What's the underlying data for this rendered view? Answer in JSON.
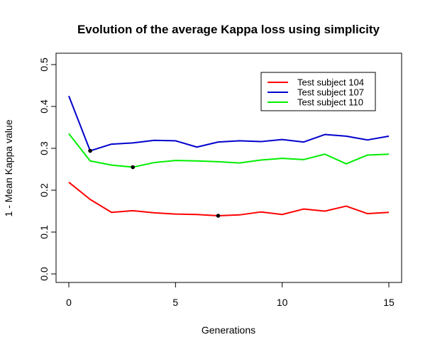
{
  "chart_data": {
    "type": "line",
    "title": "Evolution of the average Kappa loss using simplicity",
    "xlabel": "Generations",
    "ylabel": "1 - Mean Kappa value",
    "xlim": [
      0,
      15
    ],
    "ylim": [
      0,
      0.5
    ],
    "xticks": [
      "0",
      "5",
      "10",
      "15"
    ],
    "yticks": [
      "0.0",
      "0.1",
      "0.2",
      "0.3",
      "0.4",
      "0.5"
    ],
    "x": [
      0,
      1,
      2,
      3,
      4,
      5,
      6,
      7,
      8,
      9,
      10,
      11,
      12,
      13,
      14,
      15
    ],
    "series": [
      {
        "name": "Test subject 104",
        "color": "#ff0000",
        "values": [
          0.219,
          0.178,
          0.147,
          0.151,
          0.146,
          0.143,
          0.142,
          0.139,
          0.141,
          0.148,
          0.142,
          0.155,
          0.15,
          0.162,
          0.144,
          0.147
        ],
        "marker": {
          "x": 7,
          "y": 0.139
        }
      },
      {
        "name": "Test subject 107",
        "color": "#0000cc",
        "values": [
          0.425,
          0.294,
          0.31,
          0.313,
          0.319,
          0.318,
          0.303,
          0.315,
          0.318,
          0.316,
          0.321,
          0.315,
          0.333,
          0.329,
          0.32,
          0.329
        ],
        "marker": {
          "x": 1,
          "y": 0.294
        }
      },
      {
        "name": "Test subject 110",
        "color": "#00ee00",
        "values": [
          0.335,
          0.27,
          0.26,
          0.255,
          0.266,
          0.271,
          0.27,
          0.268,
          0.265,
          0.272,
          0.276,
          0.273,
          0.286,
          0.263,
          0.284,
          0.286
        ],
        "marker": {
          "x": 3,
          "y": 0.255
        }
      }
    ],
    "legend_position": "top-right",
    "grid": false
  }
}
